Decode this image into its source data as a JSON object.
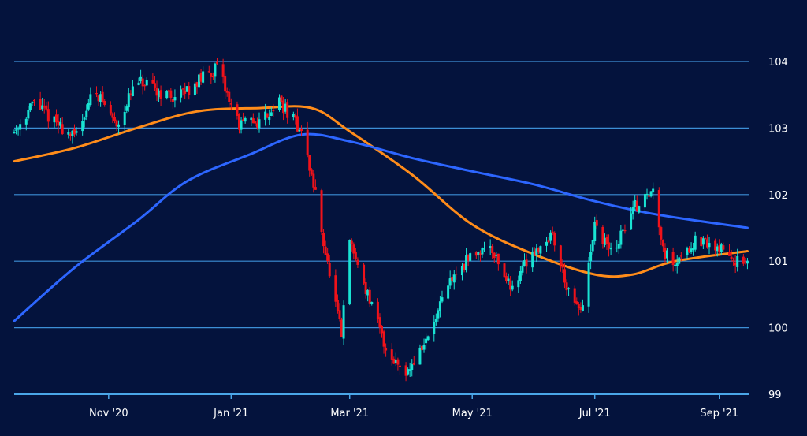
{
  "colors": {
    "background": "#04133d",
    "grid": "#3d8fd6",
    "axis": "#4aa6e8",
    "tick_text": "#ffffff",
    "candle_up": "#19e3d3",
    "candle_down": "#f0121a",
    "ma_short": "#ff8c1a",
    "ma_long": "#2d66ff"
  },
  "chart_data": {
    "type": "candlestick",
    "title": "",
    "xlabel": "",
    "ylabel": "",
    "ylim": [
      99,
      104
    ],
    "y_ticks": [
      "104",
      "103",
      "102",
      "101",
      "100",
      "99"
    ],
    "x_ticks": [
      "Nov '20",
      "Jan '21",
      "Mar '21",
      "May '21",
      "Jul '21",
      "Sep '21"
    ],
    "grid": "horizontal",
    "y_axis_position": "right",
    "price_path": [
      [
        "2020-09-15",
        102.95
      ],
      [
        "2020-09-25",
        103.4
      ],
      [
        "2020-10-05",
        103.1
      ],
      [
        "2020-10-15",
        102.85
      ],
      [
        "2020-10-25",
        103.6
      ],
      [
        "2020-11-05",
        103.05
      ],
      [
        "2020-11-15",
        103.7
      ],
      [
        "2020-11-25",
        103.55
      ],
      [
        "2020-12-05",
        103.45
      ],
      [
        "2020-12-15",
        103.7
      ],
      [
        "2020-12-25",
        103.9
      ],
      [
        "2021-01-05",
        103.05
      ],
      [
        "2021-01-15",
        103.1
      ],
      [
        "2021-01-25",
        103.4
      ],
      [
        "2021-02-05",
        102.95
      ],
      [
        "2021-02-12",
        102.0
      ],
      [
        "2021-02-20",
        100.6
      ],
      [
        "2021-02-25",
        99.9
      ],
      [
        "2021-03-01",
        101.3
      ],
      [
        "2021-03-10",
        100.5
      ],
      [
        "2021-03-20",
        99.6
      ],
      [
        "2021-03-30",
        99.35
      ],
      [
        "2021-04-10",
        99.9
      ],
      [
        "2021-04-20",
        100.7
      ],
      [
        "2021-05-01",
        101.1
      ],
      [
        "2021-05-10",
        101.25
      ],
      [
        "2021-05-20",
        100.6
      ],
      [
        "2021-05-30",
        101.1
      ],
      [
        "2021-06-10",
        101.4
      ],
      [
        "2021-06-20",
        100.3
      ],
      [
        "2021-06-25",
        100.3
      ],
      [
        "2021-07-01",
        101.5
      ],
      [
        "2021-07-10",
        101.1
      ],
      [
        "2021-07-20",
        101.8
      ],
      [
        "2021-07-30",
        102.05
      ],
      [
        "2021-08-05",
        101.1
      ],
      [
        "2021-08-10",
        101.0
      ],
      [
        "2021-08-20",
        101.3
      ],
      [
        "2021-09-01",
        101.2
      ],
      [
        "2021-09-10",
        101.0
      ],
      [
        "2021-09-15",
        100.9
      ]
    ],
    "series": [
      {
        "values": [
          [
            "2020-09-15",
            102.5
          ],
          [
            "2020-10-15",
            102.7
          ],
          [
            "2020-11-15",
            103.0
          ],
          [
            "2020-12-15",
            103.25
          ],
          [
            "2021-01-15",
            103.3
          ],
          [
            "2021-02-10",
            103.3
          ],
          [
            "2021-03-01",
            102.95
          ],
          [
            "2021-04-01",
            102.3
          ],
          [
            "2021-05-01",
            101.55
          ],
          [
            "2021-06-01",
            101.1
          ],
          [
            "2021-07-01",
            100.8
          ],
          [
            "2021-07-20",
            100.8
          ],
          [
            "2021-08-10",
            101.0
          ],
          [
            "2021-09-15",
            101.15
          ]
        ]
      },
      {
        "values": [
          [
            "2020-09-15",
            100.1
          ],
          [
            "2020-10-15",
            100.9
          ],
          [
            "2020-11-15",
            101.6
          ],
          [
            "2020-12-10",
            102.2
          ],
          [
            "2021-01-10",
            102.6
          ],
          [
            "2021-02-05",
            102.9
          ],
          [
            "2021-03-01",
            102.8
          ],
          [
            "2021-04-01",
            102.55
          ],
          [
            "2021-05-01",
            102.35
          ],
          [
            "2021-06-01",
            102.15
          ],
          [
            "2021-07-01",
            101.9
          ],
          [
            "2021-08-01",
            101.7
          ],
          [
            "2021-09-15",
            101.5
          ]
        ]
      }
    ]
  }
}
